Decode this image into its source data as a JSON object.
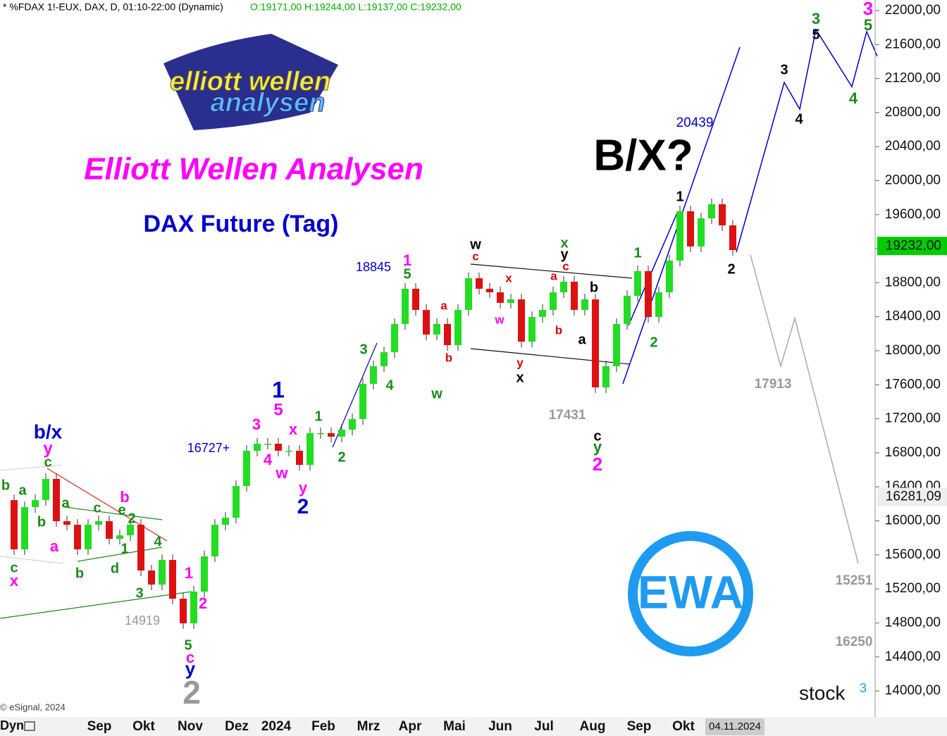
{
  "header": {
    "symbol": "* %FDAX 1!-EUX, DAX, D, 01:10-22:00 (Dynamic)",
    "ohlc": "O:19171,00 H:19244,00 L:19137,00 C:19232,00"
  },
  "logo": {
    "line1": "elliott wellen",
    "line2": "analysen"
  },
  "title": "Elliott Wellen Analysen",
  "subtitle": "DAX Future (Tag)",
  "headline": "B/X?",
  "ewa_logo": "EWA",
  "stock_logo": "stock",
  "stock_logo_sup": "3",
  "copyright": "© eSignal, 2024",
  "chart_data": {
    "type": "candlestick",
    "values": [
      16244,
      15665,
      16162,
      16244,
      16493,
      15996,
      15954,
      15665,
      15954,
      15996,
      15789,
      15830,
      15954,
      15416,
      15251,
      15540,
      15085,
      14795,
      15168,
      15582,
      15954,
      16037,
      16410,
      16824,
      16907,
      16907,
      16824,
      16824,
      16658,
      17031,
      17031,
      16990,
      17072,
      17197,
      17611,
      17818,
      17983,
      18315,
      18729,
      18480,
      18190,
      18315,
      18066,
      18480,
      18853,
      18729,
      18687,
      18563,
      18604,
      18107,
      18397,
      18480,
      18687,
      18812,
      18480,
      18604,
      17569,
      17818,
      18315,
      18646,
      18936,
      18397,
      18687,
      19060,
      19640,
      19226,
      19557,
      19723,
      19474,
      19184
    ],
    "up_color": "#22dd22",
    "down_color": "#dd1111",
    "ylim": [
      13694,
      22124
    ],
    "yticks": [
      {
        "value": 14000,
        "label": "14000,00"
      },
      {
        "value": 14400,
        "label": "14400,00"
      },
      {
        "value": 14800,
        "label": "14800,00"
      },
      {
        "value": 15200,
        "label": "15200,00"
      },
      {
        "value": 15600,
        "label": "15600,00"
      },
      {
        "value": 16000,
        "label": "16000,00"
      },
      {
        "value": 16400,
        "label": "16400,00"
      },
      {
        "value": 16800,
        "label": "16800,00"
      },
      {
        "value": 17200,
        "label": "17200,00"
      },
      {
        "value": 17600,
        "label": "17600,00"
      },
      {
        "value": 18000,
        "label": "18000,00"
      },
      {
        "value": 18400,
        "label": "18400,00"
      },
      {
        "value": 18800,
        "label": "18800,00"
      },
      {
        "value": 19200,
        "label": "19200,00"
      },
      {
        "value": 19600,
        "label": "19600,00"
      },
      {
        "value": 20000,
        "label": "20000,00"
      },
      {
        "value": 20400,
        "label": "20400,00"
      },
      {
        "value": 20800,
        "label": "20800,00"
      },
      {
        "value": 21200,
        "label": "21200,00"
      },
      {
        "value": 21600,
        "label": "21600,00"
      },
      {
        "value": 22000,
        "label": "22000,00"
      }
    ],
    "last_price": {
      "value": 19232,
      "label": "19232,00",
      "color": "#00cc00"
    },
    "marker_price": {
      "value": 16281.09,
      "label": "16281,09"
    },
    "x_corner": "Dyn",
    "x_labels": [
      "Sep",
      "Okt",
      "Nov",
      "Dez",
      "2024",
      "Feb",
      "Mrz",
      "Apr",
      "Mai",
      "Jun",
      "Jul",
      "Aug",
      "Sep",
      "Okt"
    ],
    "current_date": "04.11.2024",
    "price_labels": [
      {
        "text": "18845",
        "color": "#0000cc"
      },
      {
        "text": "16727+",
        "color": "#0000cc"
      },
      {
        "text": "14919",
        "color": "#999999"
      },
      {
        "text": "17431",
        "color": "#999999"
      },
      {
        "text": "20439",
        "color": "#0000cc"
      },
      {
        "text": "17913",
        "color": "#999999"
      },
      {
        "text": "15251",
        "color": "#999999"
      },
      {
        "text": "16250",
        "color": "#999999"
      }
    ],
    "wave_labels": [
      {
        "text": "b/x",
        "color": "#0000cc"
      },
      {
        "text": "y",
        "color": "#ff00ff"
      },
      {
        "text": "c",
        "color": "#1a8a1a"
      },
      {
        "text": "b",
        "color": "#1a8a1a"
      },
      {
        "text": "a",
        "color": "#1a8a1a"
      },
      {
        "text": "b",
        "color": "#1a8a1a"
      },
      {
        "text": "a",
        "color": "#1a8a1a"
      },
      {
        "text": "c",
        "color": "#1a8a1a"
      },
      {
        "text": "b",
        "color": "#ff00ff"
      },
      {
        "text": "e",
        "color": "#1a8a1a"
      },
      {
        "text": "2",
        "color": "#1a8a1a"
      },
      {
        "text": "a",
        "color": "#ff00ff"
      },
      {
        "text": "1",
        "color": "#1a8a1a"
      },
      {
        "text": "4",
        "color": "#1a8a1a"
      },
      {
        "text": "c",
        "color": "#1a8a1a"
      },
      {
        "text": "x",
        "color": "#ff00ff"
      },
      {
        "text": "b",
        "color": "#1a8a1a"
      },
      {
        "text": "d",
        "color": "#1a8a1a"
      },
      {
        "text": "3",
        "color": "#1a8a1a"
      },
      {
        "text": "1",
        "color": "#ff00ff"
      },
      {
        "text": "2",
        "color": "#ff00ff"
      },
      {
        "text": "5",
        "color": "#1a8a1a"
      },
      {
        "text": "c",
        "color": "#ff00ff"
      },
      {
        "text": "y",
        "color": "#0000cc"
      },
      {
        "text": "2",
        "color": "#999999"
      },
      {
        "text": "1",
        "color": "#0000cc"
      },
      {
        "text": "5",
        "color": "#ff00ff"
      },
      {
        "text": "3",
        "color": "#ff00ff"
      },
      {
        "text": "x",
        "color": "#ff00ff"
      },
      {
        "text": "4",
        "color": "#ff00ff"
      },
      {
        "text": "w",
        "color": "#ff00ff"
      },
      {
        "text": "y",
        "color": "#ff00ff"
      },
      {
        "text": "2",
        "color": "#0000cc"
      },
      {
        "text": "1",
        "color": "#1a8a1a"
      },
      {
        "text": "2",
        "color": "#1a8a1a"
      },
      {
        "text": "3",
        "color": "#1a8a1a"
      },
      {
        "text": "4",
        "color": "#1a8a1a"
      },
      {
        "text": "1",
        "color": "#ff00ff"
      },
      {
        "text": "5",
        "color": "#1a8a1a"
      },
      {
        "text": "a",
        "color": "#dd0000"
      },
      {
        "text": "b",
        "color": "#dd0000"
      },
      {
        "text": "w",
        "color": "#1a8a1a"
      },
      {
        "text": "w",
        "color": "#000000"
      },
      {
        "text": "c",
        "color": "#dd0000"
      },
      {
        "text": "x",
        "color": "#dd0000"
      },
      {
        "text": "w",
        "color": "#ff00ff"
      },
      {
        "text": "y",
        "color": "#dd0000"
      },
      {
        "text": "x",
        "color": "#000000"
      },
      {
        "text": "x",
        "color": "#1a8a1a"
      },
      {
        "text": "y",
        "color": "#000000"
      },
      {
        "text": "c",
        "color": "#dd0000"
      },
      {
        "text": "a",
        "color": "#dd0000"
      },
      {
        "text": "b",
        "color": "#000000"
      },
      {
        "text": "b",
        "color": "#dd0000"
      },
      {
        "text": "a",
        "color": "#000000"
      },
      {
        "text": "c",
        "color": "#000000"
      },
      {
        "text": "y",
        "color": "#1a8a1a"
      },
      {
        "text": "2",
        "color": "#ff00ff"
      },
      {
        "text": "1",
        "color": "#1a8a1a"
      },
      {
        "text": "2",
        "color": "#1a8a1a"
      },
      {
        "text": "1",
        "color": "#000000"
      },
      {
        "text": "2",
        "color": "#000000"
      },
      {
        "text": "3",
        "color": "#000000"
      },
      {
        "text": "4",
        "color": "#000000"
      },
      {
        "text": "3",
        "color": "#1a8a1a"
      },
      {
        "text": "5",
        "color": "#000000"
      },
      {
        "text": "4",
        "color": "#1a8a1a"
      },
      {
        "text": "3",
        "color": "#ff00ff"
      },
      {
        "text": "5",
        "color": "#1a8a1a"
      }
    ]
  }
}
